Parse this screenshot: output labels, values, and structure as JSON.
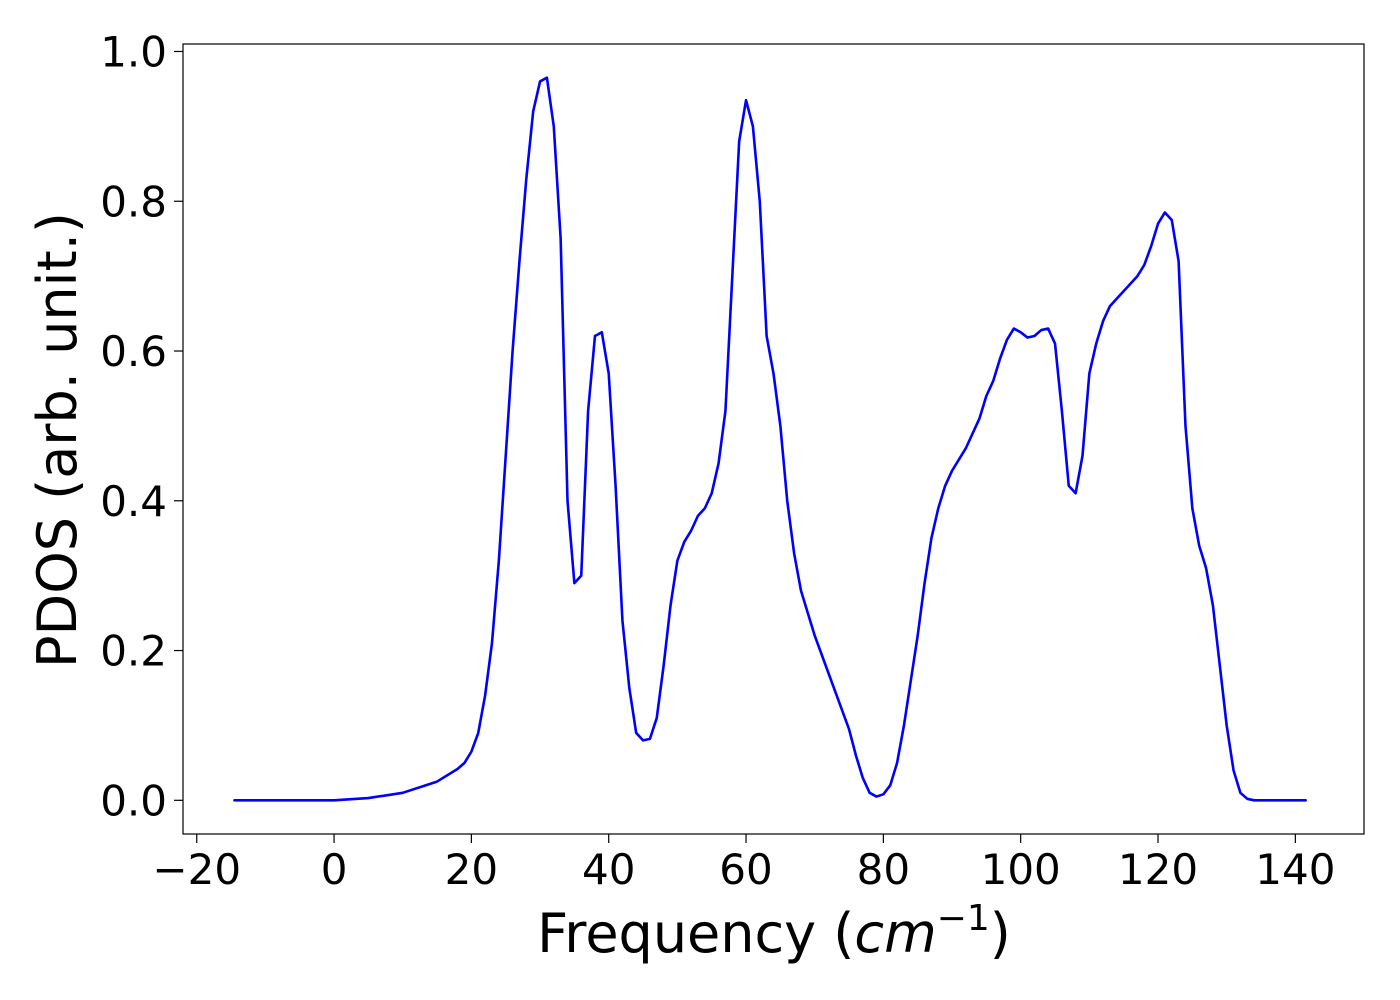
{
  "chart_data": {
    "type": "line",
    "title": "",
    "xlabel_main": "Frequency (",
    "xlabel_unit": "cm",
    "xlabel_exp": "−1",
    "xlabel_close": ")",
    "ylabel": "PDOS (arb. unit.)",
    "xlim": [
      -22,
      150
    ],
    "ylim": [
      -0.045,
      1.01
    ],
    "x_ticks": [
      -20,
      0,
      20,
      40,
      60,
      80,
      100,
      120,
      140
    ],
    "x_tick_labels": [
      "−20",
      "0",
      "20",
      "40",
      "60",
      "80",
      "100",
      "120",
      "140"
    ],
    "y_ticks": [
      0.0,
      0.2,
      0.4,
      0.6,
      0.8,
      1.0
    ],
    "y_tick_labels": [
      "0.0",
      "0.2",
      "0.4",
      "0.6",
      "0.8",
      "1.0"
    ],
    "grid": false,
    "line_color": "#0000ff",
    "series": [
      {
        "x": [
          -14.5,
          -10,
          -5,
          0,
          5,
          10,
          15,
          18,
          19,
          20,
          21,
          22,
          23,
          24,
          25,
          26,
          27,
          28,
          29,
          30,
          31,
          32,
          33,
          34,
          35,
          36,
          37,
          38,
          39,
          40,
          41,
          42,
          43,
          44,
          45,
          46,
          47,
          48,
          49,
          50,
          51,
          52,
          53,
          54,
          55,
          56,
          57,
          58,
          59,
          60,
          61,
          62,
          63,
          64,
          65,
          66,
          67,
          68,
          69,
          70,
          72,
          74,
          75,
          76,
          77,
          78,
          79,
          80,
          81,
          82,
          83,
          84,
          85,
          86,
          87,
          88,
          89,
          90,
          92,
          94,
          95,
          96,
          97,
          98,
          99,
          100,
          101,
          102,
          103,
          104,
          105,
          106,
          107,
          108,
          109,
          110,
          111,
          112,
          113,
          114,
          115,
          116,
          117,
          118,
          119,
          120,
          121,
          122,
          123,
          124,
          125,
          126,
          127,
          128,
          129,
          130,
          131,
          132,
          133,
          134,
          136,
          141.5
        ],
        "y": [
          0.0,
          0.0,
          0.0,
          0.0,
          0.003,
          0.01,
          0.025,
          0.042,
          0.05,
          0.065,
          0.09,
          0.14,
          0.21,
          0.32,
          0.46,
          0.6,
          0.72,
          0.83,
          0.92,
          0.96,
          0.965,
          0.9,
          0.75,
          0.4,
          0.29,
          0.3,
          0.52,
          0.62,
          0.625,
          0.57,
          0.42,
          0.24,
          0.15,
          0.09,
          0.08,
          0.082,
          0.11,
          0.18,
          0.26,
          0.32,
          0.345,
          0.36,
          0.38,
          0.39,
          0.41,
          0.45,
          0.52,
          0.7,
          0.88,
          0.935,
          0.9,
          0.8,
          0.62,
          0.57,
          0.5,
          0.4,
          0.33,
          0.28,
          0.25,
          0.22,
          0.17,
          0.12,
          0.095,
          0.06,
          0.03,
          0.01,
          0.005,
          0.008,
          0.02,
          0.05,
          0.1,
          0.16,
          0.22,
          0.29,
          0.35,
          0.39,
          0.42,
          0.44,
          0.47,
          0.51,
          0.54,
          0.56,
          0.59,
          0.615,
          0.63,
          0.625,
          0.618,
          0.62,
          0.628,
          0.63,
          0.61,
          0.52,
          0.42,
          0.41,
          0.46,
          0.57,
          0.61,
          0.64,
          0.66,
          0.67,
          0.68,
          0.69,
          0.7,
          0.715,
          0.74,
          0.77,
          0.785,
          0.775,
          0.72,
          0.5,
          0.39,
          0.34,
          0.31,
          0.26,
          0.18,
          0.1,
          0.04,
          0.01,
          0.002,
          0.0,
          0.0,
          0.0
        ]
      }
    ]
  }
}
